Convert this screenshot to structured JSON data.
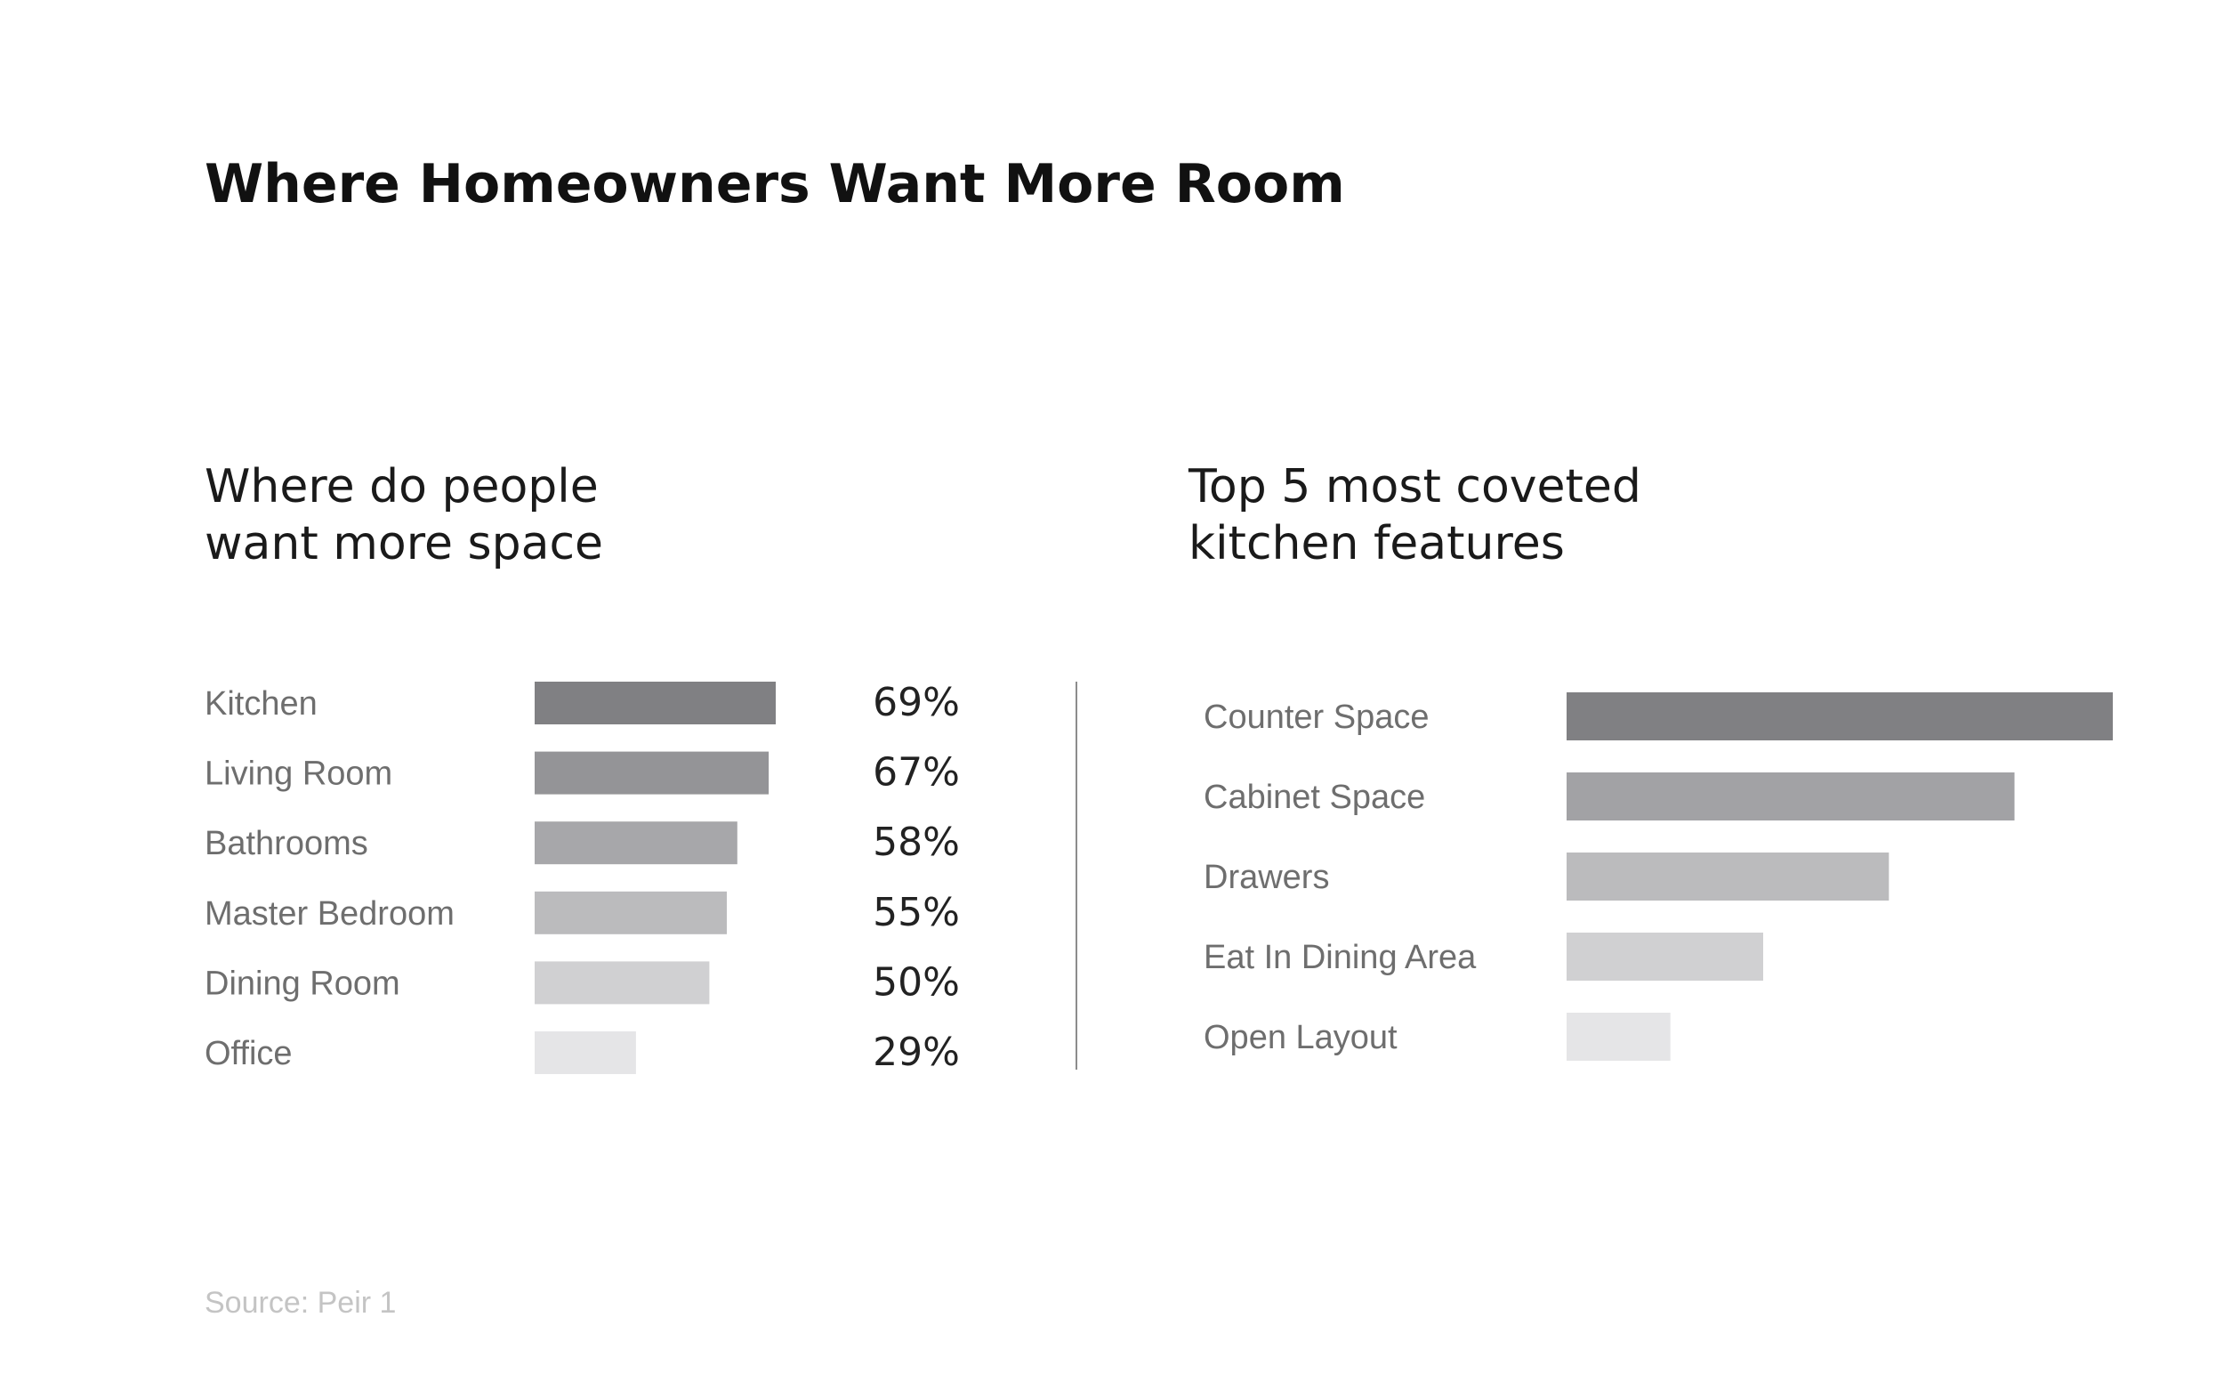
{
  "title": "Where Homeowners Want More Room",
  "source": "Source: Peir 1",
  "chart_data": [
    {
      "type": "bar",
      "orientation": "horizontal",
      "title_lines": [
        "Where do people",
        "want more space"
      ],
      "categories": [
        "Kitchen",
        "Living Room",
        "Bathrooms",
        "Master Bedroom",
        "Dining Room",
        "Office"
      ],
      "values": [
        69,
        67,
        58,
        55,
        50,
        29
      ],
      "value_labels": [
        "69%",
        "67%",
        "58%",
        "55%",
        "50%",
        "29%"
      ],
      "unit": "%",
      "colors": [
        "#808083",
        "#949497",
        "#a7a7aa",
        "#bbbbbd",
        "#d0d0d2",
        "#e5e5e7"
      ]
    },
    {
      "type": "bar",
      "orientation": "horizontal",
      "title_lines": [
        "Top 5 most coveted",
        "kitchen features"
      ],
      "categories": [
        "Counter Space",
        "Cabinet Space",
        "Drawers",
        "Eat In Dining Area",
        "Open Layout"
      ],
      "values": [
        100,
        82,
        59,
        36,
        19
      ],
      "value_scale": "relative (no values printed)",
      "colors": [
        "#808083",
        "#a2a2a5",
        "#bbbbbd",
        "#d0d0d2",
        "#e5e5e7"
      ]
    }
  ],
  "colors": {
    "divider": "#8c8c8c",
    "category_label": "#6e6e6e",
    "value_label": "#222222"
  }
}
